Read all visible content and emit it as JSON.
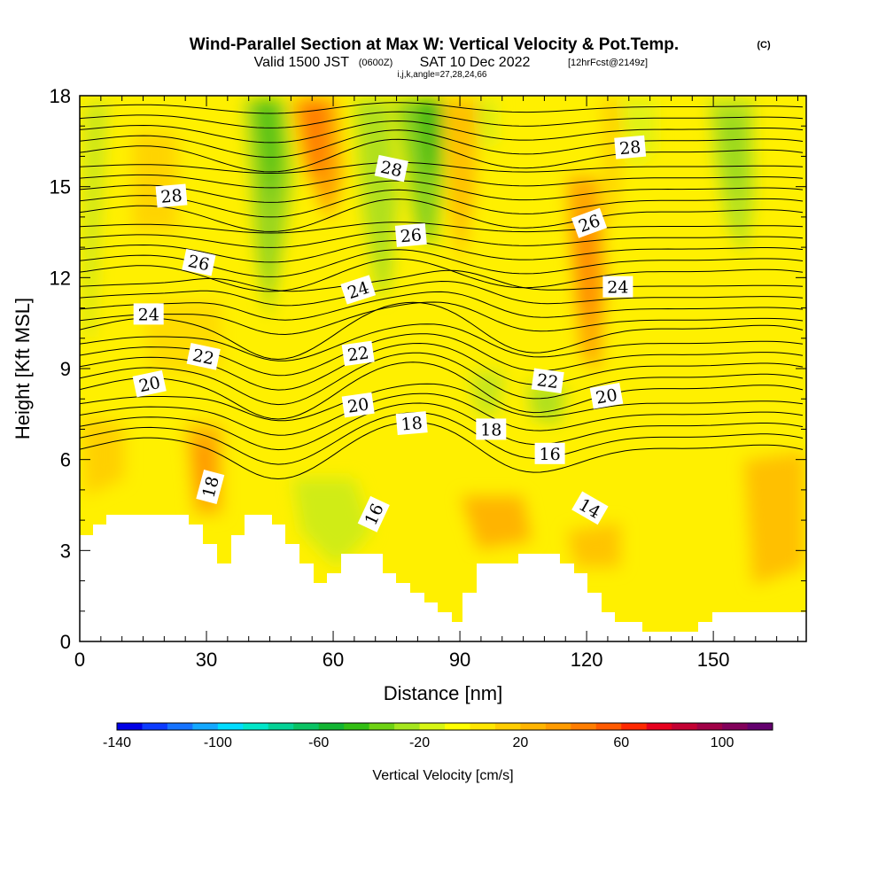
{
  "title": {
    "main": "Wind-Parallel Section at Max W: Vertical Velocity & Pot.Temp.",
    "main_suffix": "(C)",
    "valid_prefix": "Valid 1500 JST",
    "valid_utc": "(0600Z)",
    "valid_date": "SAT 10 Dec 2022",
    "forecast": "[12hrFcst@2149z]",
    "indices": "i,j,k,angle=27,28,24,66"
  },
  "chart_data": {
    "type": "contour",
    "xlabel": "Distance [nm]",
    "ylabel": "Height [Kft MSL]",
    "xlim": [
      0,
      172
    ],
    "ylim": [
      0,
      18
    ],
    "x_ticks": [
      0,
      30,
      60,
      90,
      120,
      150
    ],
    "y_ticks": [
      0,
      3,
      6,
      9,
      12,
      15,
      18
    ],
    "fill_variable": "Vertical Velocity [cm/s]",
    "colorbar": {
      "title": "Vertical Velocity [cm/s]",
      "min": -140,
      "max": 120,
      "step": 10,
      "tick_labels": [
        -140,
        -100,
        -60,
        -20,
        20,
        60,
        100
      ],
      "colors": [
        "#0000e6",
        "#0c3bff",
        "#1673ff",
        "#14a8ff",
        "#00dcff",
        "#00e6c8",
        "#05d296",
        "#0ac364",
        "#12b432",
        "#32be14",
        "#6ed214",
        "#a5e61e",
        "#d7f514",
        "#ffff00",
        "#ffe600",
        "#ffcd00",
        "#ffb400",
        "#ff9b00",
        "#ff7d00",
        "#ff5a00",
        "#ff2800",
        "#e6001e",
        "#c30032",
        "#a00046",
        "#82005a",
        "#64006e"
      ]
    },
    "contour_variable": "Potential Temperature (C)",
    "contour_labels": [
      {
        "text": "28",
        "x": 21.7,
        "y": 14.7,
        "angle": -5
      },
      {
        "text": "28",
        "x": 73.8,
        "y": 15.6,
        "angle": 12
      },
      {
        "text": "28",
        "x": 130.3,
        "y": 16.3,
        "angle": -5
      },
      {
        "text": "26",
        "x": 28.2,
        "y": 12.5,
        "angle": 12
      },
      {
        "text": "26",
        "x": 78.4,
        "y": 13.4,
        "angle": -5
      },
      {
        "text": "26",
        "x": 120.6,
        "y": 13.8,
        "angle": -20
      },
      {
        "text": "24",
        "x": 16.3,
        "y": 10.8,
        "angle": 0
      },
      {
        "text": "24",
        "x": 65.9,
        "y": 11.6,
        "angle": -18
      },
      {
        "text": "24",
        "x": 127.4,
        "y": 11.7,
        "angle": 0
      },
      {
        "text": "22",
        "x": 29.3,
        "y": 9.4,
        "angle": 12
      },
      {
        "text": "22",
        "x": 65.9,
        "y": 9.5,
        "angle": -8
      },
      {
        "text": "22",
        "x": 110.8,
        "y": 8.6,
        "angle": 8
      },
      {
        "text": "20",
        "x": 16.5,
        "y": 8.5,
        "angle": -12
      },
      {
        "text": "20",
        "x": 65.9,
        "y": 7.8,
        "angle": -8
      },
      {
        "text": "20",
        "x": 124.7,
        "y": 8.1,
        "angle": -10
      },
      {
        "text": "18",
        "x": 78.6,
        "y": 7.2,
        "angle": -5
      },
      {
        "text": "18",
        "x": 97.4,
        "y": 7.0,
        "angle": 0
      },
      {
        "text": "18",
        "x": 30.9,
        "y": 5.1,
        "angle": -75
      },
      {
        "text": "16",
        "x": 111.3,
        "y": 6.2,
        "angle": 0
      },
      {
        "text": "16",
        "x": 69.6,
        "y": 4.2,
        "angle": -65
      },
      {
        "text": "14",
        "x": 120.8,
        "y": 4.4,
        "angle": 30
      }
    ]
  }
}
